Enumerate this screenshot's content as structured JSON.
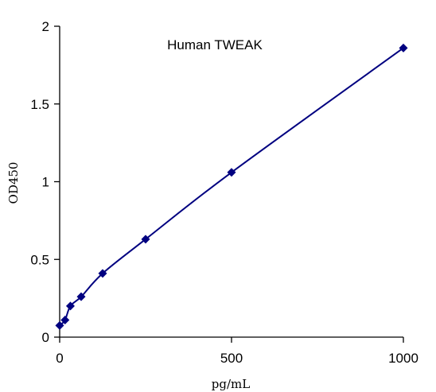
{
  "chart_data": {
    "type": "line",
    "title": "Human   TWEAK",
    "xlabel": "pg/mL",
    "ylabel": "OD450",
    "xlim": [
      0,
      1000
    ],
    "ylim": [
      0,
      2
    ],
    "x_ticks": [
      0,
      500,
      1000
    ],
    "x_tick_labels": [
      "0",
      "500",
      "1000"
    ],
    "y_ticks": [
      0,
      0.5,
      1,
      1.5,
      2
    ],
    "y_tick_labels": [
      "0",
      "0.5",
      "1",
      "1.5",
      "2"
    ],
    "grid": false,
    "series": [
      {
        "x": [
          0,
          15.6,
          31.2,
          62.5,
          125,
          250,
          500,
          1000
        ],
        "y": [
          0.075,
          0.11,
          0.2,
          0.26,
          0.41,
          0.63,
          1.06,
          1.86
        ],
        "color": "#000080",
        "marker": "diamond"
      }
    ]
  }
}
